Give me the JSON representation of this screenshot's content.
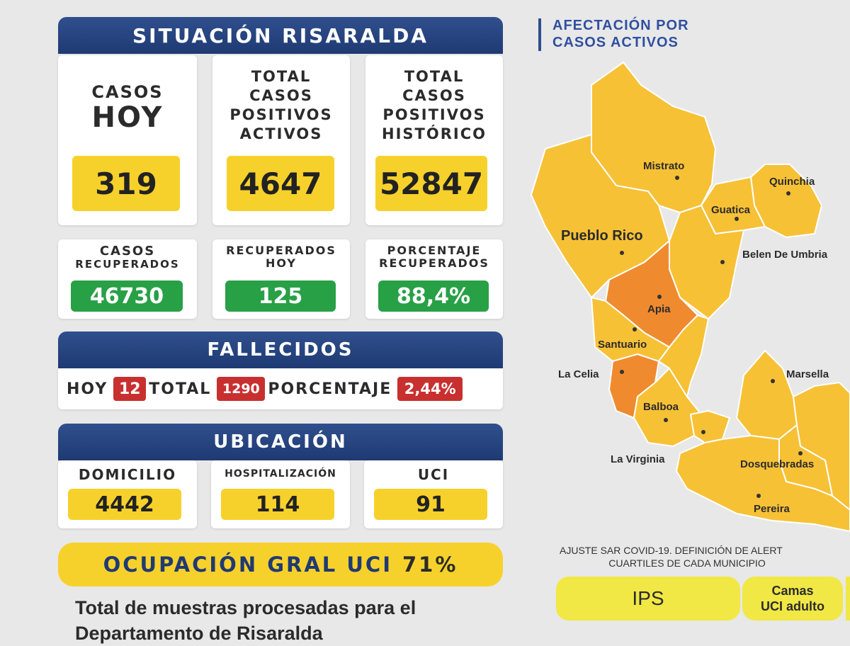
{
  "header": {
    "title": "SITUACIÓN RISARALDA"
  },
  "colors": {
    "banner": "#1f3a73",
    "yellow": "#f7d12b",
    "green": "#28a046",
    "red": "#c8302f",
    "orange": "#f08a2f",
    "map_yellow": "#f7c136"
  },
  "top_stats": [
    {
      "label_line1": "CASOS",
      "label_line2": "HOY",
      "value": "319"
    },
    {
      "label_lines": [
        "TOTAL",
        "CASOS",
        "POSITIVOS",
        "ACTIVOS"
      ],
      "value": "4647"
    },
    {
      "label_lines": [
        "TOTAL",
        "CASOS",
        "POSITIVOS",
        "HISTÓRICO"
      ],
      "value": "52847"
    }
  ],
  "recovered": [
    {
      "label_lines": [
        "CASOS",
        "RECUPERADOS"
      ],
      "value": "46730"
    },
    {
      "label_lines": [
        "RECUPERADOS",
        "HOY"
      ],
      "value": "125"
    },
    {
      "label_lines": [
        "PORCENTAJE",
        "RECUPERADOS"
      ],
      "value": "88,4%"
    }
  ],
  "fallecidos": {
    "title": "FALLECIDOS",
    "hoy_label": "HOY",
    "hoy_value": "12",
    "total_label": "TOTAL",
    "total_value": "1290",
    "pct_label": "PORCENTAJE",
    "pct_value": "2,44%"
  },
  "ubicacion": {
    "title": "UBICACIÓN",
    "items": [
      {
        "label": "DOMICILIO",
        "value": "4442"
      },
      {
        "label": "HOSPITALIZACIÓN",
        "value": "114"
      },
      {
        "label": "UCI",
        "value": "91"
      }
    ]
  },
  "ocupacion": {
    "label": "OCUPACIÓN GRAL UCI",
    "value": "71%"
  },
  "muestras": {
    "line1": "Total de muestras procesadas para el",
    "line2": "Departamento de Risaralda"
  },
  "map": {
    "title_line1": "AFECTACIÓN POR",
    "title_line2": "CASOS ACTIVOS",
    "municipalities": [
      "Mistrato",
      "Quinchia",
      "Guatica",
      "Pueblo Rico",
      "Belen De Umbria",
      "Apia",
      "Santuario",
      "La Celia",
      "Marsella",
      "Balboa",
      "La Virginia",
      "Dosquebradas",
      "Pereira"
    ]
  },
  "footer_right": {
    "note_line1": "AJUSTE SAR COVID-19. DEFINICIÓN DE ALERT",
    "note_line2": "CUARTILES DE CADA MUNICIPIO",
    "col1": "IPS",
    "col2_line1": "Camas",
    "col2_line2": "UCI adulto"
  }
}
